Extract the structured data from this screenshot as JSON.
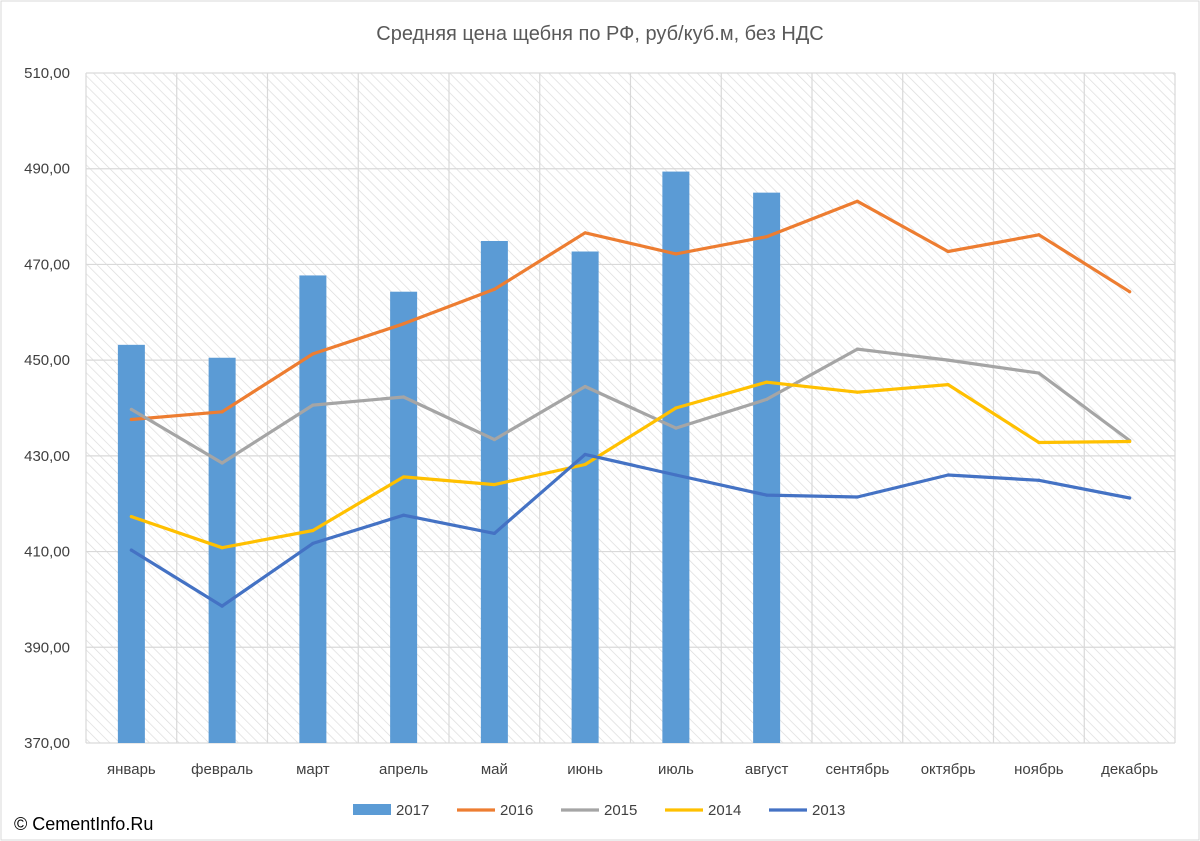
{
  "credit": "© CementInfo.Ru",
  "colors": {
    "s2017": "#5b9bd5",
    "s2016": "#ed7d31",
    "s2015": "#a5a5a5",
    "s2014": "#ffc000",
    "s2013": "#4472c4",
    "grid": "#d9d9d9",
    "text": "#404040",
    "title": "#595959"
  },
  "chart_data": {
    "type": "bar",
    "title": "Средняя цена щебня по РФ, руб/куб.м, без НДС",
    "xlabel": "",
    "ylabel": "",
    "ylim": [
      370,
      510
    ],
    "y_ticks": [
      "370,00",
      "390,00",
      "410,00",
      "430,00",
      "450,00",
      "470,00",
      "490,00",
      "510,00"
    ],
    "y_tick_values": [
      370,
      390,
      410,
      430,
      450,
      470,
      490,
      510
    ],
    "grid": true,
    "legend_position": "bottom",
    "categories": [
      "январь",
      "февраль",
      "март",
      "апрель",
      "май",
      "июнь",
      "июль",
      "август",
      "сентябрь",
      "октябрь",
      "ноябрь",
      "декабрь"
    ],
    "series": [
      {
        "name": "2017",
        "type": "bar",
        "color_key": "s2017",
        "values": [
          453.2,
          450.5,
          467.7,
          464.3,
          474.9,
          472.7,
          489.4,
          485.0,
          null,
          null,
          null,
          null
        ]
      },
      {
        "name": "2016",
        "type": "line",
        "color_key": "s2016",
        "values": [
          437.6,
          439.2,
          451.3,
          457.6,
          464.8,
          476.6,
          472.2,
          475.8,
          483.2,
          472.7,
          476.2,
          464.3
        ]
      },
      {
        "name": "2015",
        "type": "line",
        "color_key": "s2015",
        "values": [
          439.7,
          428.5,
          440.6,
          442.3,
          433.4,
          444.5,
          435.8,
          441.8,
          452.3,
          450.0,
          447.3,
          433.2
        ]
      },
      {
        "name": "2014",
        "type": "line",
        "color_key": "s2014",
        "values": [
          417.3,
          410.8,
          414.4,
          425.6,
          424.0,
          428.2,
          440.0,
          445.4,
          443.3,
          444.9,
          432.8,
          433.0
        ]
      },
      {
        "name": "2013",
        "type": "line",
        "color_key": "s2013",
        "values": [
          410.3,
          398.6,
          411.7,
          417.6,
          413.8,
          430.3,
          426.0,
          421.8,
          421.4,
          426.0,
          424.9,
          421.2
        ]
      }
    ]
  }
}
